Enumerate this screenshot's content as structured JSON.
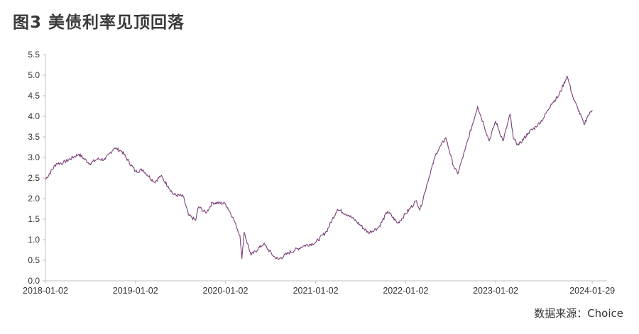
{
  "title": "图3  美债利率见顶回落",
  "source": "数据来源：Choice",
  "chart_data": {
    "type": "line",
    "title": "",
    "xlabel": "",
    "ylabel": "",
    "ylim": [
      0,
      5.5
    ],
    "yticks": [
      "0.0",
      "0.5",
      "1.0",
      "1.5",
      "2.0",
      "2.5",
      "3.0",
      "3.5",
      "4.0",
      "4.5",
      "5.0",
      "5.5"
    ],
    "xticks": [
      "2018-01-02",
      "2019-01-02",
      "2020-01-02",
      "2021-01-02",
      "2022-01-02",
      "2023-01-02",
      "2024-01-29"
    ],
    "grid": false,
    "line_color": "#7b3f78",
    "series": [
      {
        "x": [
          "2018-01-02",
          "2018-02-15",
          "2018-03-15",
          "2018-05-17",
          "2018-07-01",
          "2018-08-01",
          "2018-09-01",
          "2018-10-08",
          "2018-11-08",
          "2019-01-02",
          "2019-02-01",
          "2019-03-20",
          "2019-04-15",
          "2019-05-15",
          "2019-06-05",
          "2019-07-15",
          "2019-08-05",
          "2019-09-03",
          "2019-09-15",
          "2019-10-15",
          "2019-11-10",
          "2020-01-02",
          "2020-02-01",
          "2020-03-01",
          "2020-03-09",
          "2020-03-18",
          "2020-04-15",
          "2020-06-05",
          "2020-07-15",
          "2020-08-04",
          "2020-09-15",
          "2020-11-15",
          "2021-01-02",
          "2021-02-15",
          "2021-03-31",
          "2021-05-15",
          "2021-06-15",
          "2021-08-04",
          "2021-09-15",
          "2021-10-21",
          "2021-12-01",
          "2022-01-02",
          "2022-02-15",
          "2022-03-01",
          "2022-04-01",
          "2022-05-06",
          "2022-06-14",
          "2022-07-15",
          "2022-08-01",
          "2022-09-01",
          "2022-10-21",
          "2022-11-15",
          "2022-12-07",
          "2023-01-02",
          "2023-02-01",
          "2023-03-02",
          "2023-03-15",
          "2023-04-06",
          "2023-05-15",
          "2023-06-15",
          "2023-07-15",
          "2023-08-15",
          "2023-09-15",
          "2023-10-19",
          "2023-11-15",
          "2023-12-01",
          "2023-12-27",
          "2024-01-10",
          "2024-01-29"
        ],
        "values": [
          2.46,
          2.85,
          2.87,
          3.08,
          2.85,
          2.96,
          2.95,
          3.23,
          3.15,
          2.66,
          2.7,
          2.4,
          2.55,
          2.3,
          2.1,
          2.05,
          1.6,
          1.47,
          1.8,
          1.65,
          1.9,
          1.88,
          1.55,
          1.1,
          0.54,
          1.18,
          0.62,
          0.9,
          0.6,
          0.52,
          0.68,
          0.85,
          0.93,
          1.2,
          1.74,
          1.6,
          1.45,
          1.17,
          1.3,
          1.69,
          1.4,
          1.63,
          1.95,
          1.72,
          2.4,
          3.1,
          3.48,
          2.8,
          2.6,
          3.2,
          4.24,
          3.8,
          3.4,
          3.88,
          3.4,
          4.05,
          3.45,
          3.3,
          3.6,
          3.75,
          3.95,
          4.3,
          4.5,
          4.98,
          4.4,
          4.2,
          3.8,
          4.0,
          4.15
        ]
      }
    ]
  }
}
